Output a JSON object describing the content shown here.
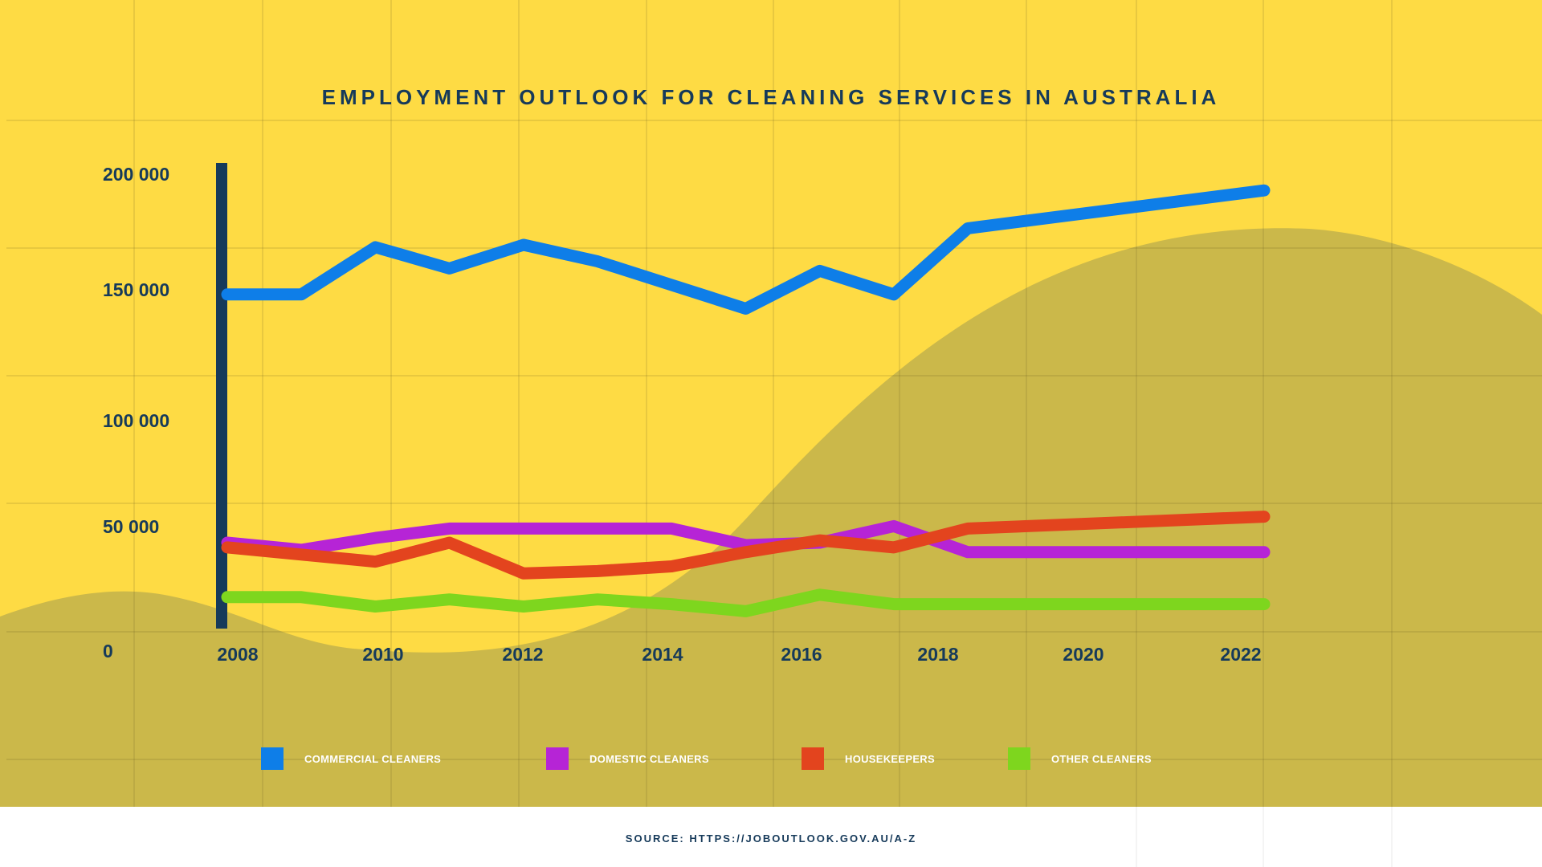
{
  "chart_data": {
    "type": "line",
    "title": "EMPLOYMENT OUTLOOK FOR CLEANING SERVICES IN AUSTRALIA",
    "xlabel": "",
    "ylabel": "",
    "x_ticks": [
      "2008",
      "2010",
      "2012",
      "2014",
      "2016",
      "2018",
      "2020",
      "2022"
    ],
    "y_ticks": [
      "200 000",
      "150 000",
      "100 000",
      "50 000",
      "0"
    ],
    "y_tick_values": [
      200000,
      150000,
      100000,
      50000,
      0
    ],
    "ylim": [
      0,
      200000
    ],
    "xlim": [
      2008,
      2022
    ],
    "grid": true,
    "legend_position": "bottom",
    "series": [
      {
        "name": "COMMERCIAL CLEANERS",
        "color": "#0e7ee8",
        "points": [
          [
            2008,
            142000
          ],
          [
            2009,
            142000
          ],
          [
            2010,
            162000
          ],
          [
            2011,
            153000
          ],
          [
            2012,
            163000
          ],
          [
            2013,
            156000
          ],
          [
            2014,
            146000
          ],
          [
            2015,
            136000
          ],
          [
            2016,
            152000
          ],
          [
            2017,
            142000
          ],
          [
            2018,
            170000
          ],
          [
            2022,
            186000
          ]
        ]
      },
      {
        "name": "DOMESTIC CLEANERS",
        "color": "#b624d6",
        "points": [
          [
            2008,
            37000
          ],
          [
            2009,
            34000
          ],
          [
            2010,
            39000
          ],
          [
            2011,
            43000
          ],
          [
            2012,
            43000
          ],
          [
            2013,
            43000
          ],
          [
            2014,
            43000
          ],
          [
            2015,
            36000
          ],
          [
            2016,
            37000
          ],
          [
            2017,
            44000
          ],
          [
            2018,
            33000
          ],
          [
            2022,
            33000
          ]
        ]
      },
      {
        "name": "HOUSEKEEPERS",
        "color": "#e3441e",
        "points": [
          [
            2008,
            35000
          ],
          [
            2009,
            32000
          ],
          [
            2010,
            29000
          ],
          [
            2011,
            37000
          ],
          [
            2012,
            24000
          ],
          [
            2013,
            25000
          ],
          [
            2014,
            27000
          ],
          [
            2015,
            33000
          ],
          [
            2016,
            38000
          ],
          [
            2017,
            35000
          ],
          [
            2018,
            43000
          ],
          [
            2022,
            48000
          ]
        ]
      },
      {
        "name": "OTHER CLEANERS",
        "color": "#7ed61e",
        "points": [
          [
            2008,
            14000
          ],
          [
            2009,
            14000
          ],
          [
            2010,
            10000
          ],
          [
            2011,
            13000
          ],
          [
            2012,
            10000
          ],
          [
            2013,
            13000
          ],
          [
            2014,
            11000
          ],
          [
            2015,
            8000
          ],
          [
            2016,
            15000
          ],
          [
            2017,
            11000
          ],
          [
            2018,
            11000
          ],
          [
            2022,
            11000
          ]
        ]
      }
    ]
  },
  "colors": {
    "background": "#fedb44",
    "hill": "#cbb84a",
    "text": "#163a5a",
    "axis_bar": "#163a5a"
  },
  "source_text": "SOURCE: HTTPS://JOBOUTLOOK.GOV.AU/A-Z"
}
